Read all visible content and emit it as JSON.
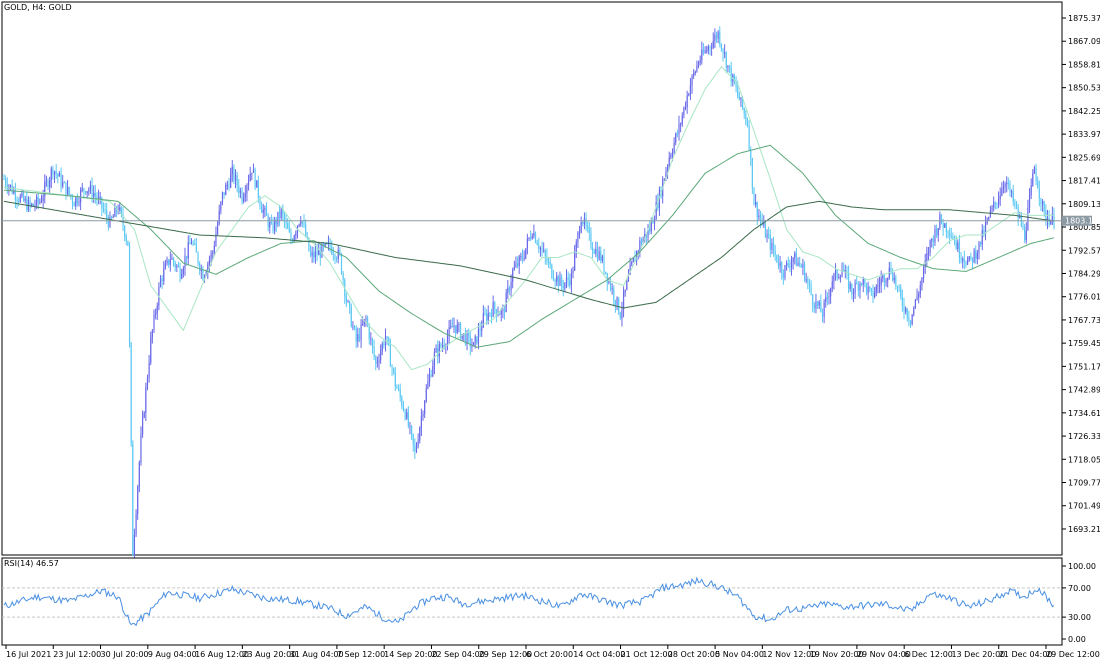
{
  "symbol_header": "GOLD, H4:  GOLD",
  "rsi_header": "RSI(14) 46.57",
  "current_price_label": "1803.10",
  "colors": {
    "bull": "#6868e8",
    "bear": "#5cc8f4",
    "ma_fast": "#a8e6c4",
    "ma_mid": "#5aa878",
    "ma_slow": "#3a6a4a",
    "rsi": "#4a90e2",
    "price_line": "#8c9aa4",
    "grid": "#c8c8c8"
  },
  "chart_data": [
    {
      "type": "candlestick",
      "title": "GOLD, H4:  GOLD",
      "ylim": [
        1685,
        1880
      ],
      "y_ticks": [
        "1875.37",
        "1867.09",
        "1858.81",
        "1850.53",
        "1842.25",
        "1833.97",
        "1825.69",
        "1817.41",
        "1809.13",
        "1800.85",
        "1792.57",
        "1784.29",
        "1776.01",
        "1767.73",
        "1759.45",
        "1751.17",
        "1742.89",
        "1734.61",
        "1726.33",
        "1718.05",
        "1709.77",
        "1701.49",
        "1693.21"
      ],
      "x_ticks": [
        "16 Jul 2021",
        "23 Jul 12:00",
        "30 Jul 20:00",
        "9 Aug 04:00",
        "16 Aug 12:00",
        "23 Aug 20:00",
        "31 Aug 04:00",
        "7 Sep 12:00",
        "14 Sep 20:00",
        "22 Sep 04:00",
        "29 Sep 12:00",
        "6 Oct 20:00",
        "14 Oct 04:00",
        "21 Oct 12:00",
        "28 Oct 20:00",
        "5 Nov 04:00",
        "12 Nov 12:00",
        "19 Nov 20:00",
        "29 Nov 04:00",
        "6 Dec 12:00",
        "13 Dec 20:00",
        "21 Dec 04:00",
        "29 Dec 12:00"
      ],
      "current_price": 1803.1,
      "path": [
        [
          0,
          1818
        ],
        [
          8,
          1812
        ],
        [
          16,
          1808
        ],
        [
          22,
          1810
        ],
        [
          30,
          1822
        ],
        [
          36,
          1816
        ],
        [
          43,
          1810
        ],
        [
          50,
          1815
        ],
        [
          55,
          1813
        ],
        [
          60,
          1808
        ],
        [
          65,
          1802
        ],
        [
          70,
          1808
        ],
        [
          76,
          1795
        ],
        [
          79,
          1685
        ],
        [
          84,
          1725
        ],
        [
          90,
          1760
        ],
        [
          96,
          1782
        ],
        [
          102,
          1790
        ],
        [
          108,
          1785
        ],
        [
          115,
          1796
        ],
        [
          122,
          1784
        ],
        [
          128,
          1792
        ],
        [
          134,
          1812
        ],
        [
          140,
          1820
        ],
        [
          146,
          1812
        ],
        [
          152,
          1822
        ],
        [
          158,
          1808
        ],
        [
          164,
          1800
        ],
        [
          170,
          1806
        ],
        [
          176,
          1796
        ],
        [
          182,
          1805
        ],
        [
          188,
          1790
        ],
        [
          194,
          1792
        ],
        [
          200,
          1794
        ],
        [
          206,
          1790
        ],
        [
          210,
          1775
        ],
        [
          216,
          1760
        ],
        [
          222,
          1768
        ],
        [
          228,
          1752
        ],
        [
          234,
          1762
        ],
        [
          240,
          1745
        ],
        [
          246,
          1735
        ],
        [
          252,
          1720
        ],
        [
          258,
          1740
        ],
        [
          264,
          1755
        ],
        [
          270,
          1760
        ],
        [
          276,
          1766
        ],
        [
          282,
          1762
        ],
        [
          288,
          1758
        ],
        [
          294,
          1768
        ],
        [
          300,
          1772
        ],
        [
          306,
          1770
        ],
        [
          312,
          1785
        ],
        [
          318,
          1790
        ],
        [
          324,
          1800
        ],
        [
          330,
          1792
        ],
        [
          336,
          1785
        ],
        [
          342,
          1780
        ],
        [
          348,
          1783
        ],
        [
          354,
          1805
        ],
        [
          360,
          1795
        ],
        [
          366,
          1790
        ],
        [
          372,
          1780
        ],
        [
          378,
          1770
        ],
        [
          384,
          1785
        ],
        [
          390,
          1795
        ],
        [
          396,
          1800
        ],
        [
          402,
          1812
        ],
        [
          408,
          1826
        ],
        [
          414,
          1836
        ],
        [
          420,
          1850
        ],
        [
          426,
          1860
        ],
        [
          432,
          1865
        ],
        [
          438,
          1870
        ],
        [
          444,
          1858
        ],
        [
          450,
          1848
        ],
        [
          456,
          1838
        ],
        [
          460,
          1810
        ],
        [
          466,
          1800
        ],
        [
          472,
          1792
        ],
        [
          478,
          1785
        ],
        [
          484,
          1790
        ],
        [
          490,
          1786
        ],
        [
          496,
          1775
        ],
        [
          502,
          1770
        ],
        [
          508,
          1782
        ],
        [
          514,
          1786
        ],
        [
          520,
          1778
        ],
        [
          526,
          1782
        ],
        [
          532,
          1776
        ],
        [
          538,
          1782
        ],
        [
          544,
          1786
        ],
        [
          550,
          1775
        ],
        [
          556,
          1768
        ],
        [
          562,
          1780
        ],
        [
          568,
          1795
        ],
        [
          574,
          1803
        ],
        [
          580,
          1800
        ],
        [
          586,
          1792
        ],
        [
          592,
          1788
        ],
        [
          598,
          1794
        ],
        [
          604,
          1804
        ],
        [
          610,
          1812
        ],
        [
          614,
          1818
        ],
        [
          620,
          1808
        ],
        [
          626,
          1798
        ],
        [
          632,
          1822
        ],
        [
          638,
          1805
        ],
        [
          644,
          1803
        ]
      ],
      "ma_fast": [
        [
          0,
          1815
        ],
        [
          40,
          1812
        ],
        [
          65,
          1810
        ],
        [
          80,
          1800
        ],
        [
          90,
          1780
        ],
        [
          100,
          1772
        ],
        [
          110,
          1764
        ],
        [
          120,
          1778
        ],
        [
          130,
          1792
        ],
        [
          140,
          1800
        ],
        [
          150,
          1808
        ],
        [
          160,
          1812
        ],
        [
          170,
          1808
        ],
        [
          180,
          1800
        ],
        [
          190,
          1795
        ],
        [
          200,
          1788
        ],
        [
          210,
          1778
        ],
        [
          220,
          1768
        ],
        [
          230,
          1762
        ],
        [
          240,
          1758
        ],
        [
          250,
          1750
        ],
        [
          260,
          1752
        ],
        [
          270,
          1758
        ],
        [
          280,
          1762
        ],
        [
          290,
          1765
        ],
        [
          300,
          1768
        ],
        [
          310,
          1775
        ],
        [
          320,
          1782
        ],
        [
          330,
          1790
        ],
        [
          340,
          1790
        ],
        [
          350,
          1792
        ],
        [
          360,
          1790
        ],
        [
          370,
          1782
        ],
        [
          380,
          1780
        ],
        [
          390,
          1792
        ],
        [
          400,
          1808
        ],
        [
          410,
          1825
        ],
        [
          420,
          1838
        ],
        [
          430,
          1850
        ],
        [
          440,
          1858
        ],
        [
          450,
          1852
        ],
        [
          460,
          1835
        ],
        [
          470,
          1818
        ],
        [
          480,
          1800
        ],
        [
          490,
          1792
        ],
        [
          500,
          1790
        ],
        [
          510,
          1786
        ],
        [
          520,
          1784
        ],
        [
          530,
          1782
        ],
        [
          540,
          1784
        ],
        [
          550,
          1786
        ],
        [
          560,
          1786
        ],
        [
          570,
          1790
        ],
        [
          580,
          1796
        ],
        [
          590,
          1798
        ],
        [
          600,
          1798
        ],
        [
          610,
          1802
        ],
        [
          620,
          1806
        ],
        [
          630,
          1805
        ],
        [
          644,
          1805
        ]
      ],
      "ma_mid": [
        [
          0,
          1814
        ],
        [
          40,
          1812
        ],
        [
          70,
          1810
        ],
        [
          90,
          1800
        ],
        [
          110,
          1788
        ],
        [
          130,
          1784
        ],
        [
          150,
          1790
        ],
        [
          170,
          1795
        ],
        [
          190,
          1796
        ],
        [
          210,
          1790
        ],
        [
          230,
          1778
        ],
        [
          250,
          1770
        ],
        [
          270,
          1763
        ],
        [
          290,
          1758
        ],
        [
          310,
          1760
        ],
        [
          330,
          1768
        ],
        [
          350,
          1775
        ],
        [
          370,
          1782
        ],
        [
          390,
          1792
        ],
        [
          410,
          1805
        ],
        [
          430,
          1820
        ],
        [
          450,
          1827
        ],
        [
          470,
          1830
        ],
        [
          490,
          1820
        ],
        [
          510,
          1805
        ],
        [
          530,
          1795
        ],
        [
          550,
          1790
        ],
        [
          570,
          1786
        ],
        [
          590,
          1785
        ],
        [
          610,
          1790
        ],
        [
          630,
          1795
        ],
        [
          644,
          1797
        ]
      ],
      "ma_slow": [
        [
          0,
          1810
        ],
        [
          40,
          1806
        ],
        [
          80,
          1802
        ],
        [
          120,
          1798
        ],
        [
          160,
          1797
        ],
        [
          200,
          1795
        ],
        [
          240,
          1790
        ],
        [
          280,
          1787
        ],
        [
          320,
          1782
        ],
        [
          360,
          1775
        ],
        [
          380,
          1772
        ],
        [
          400,
          1774
        ],
        [
          420,
          1782
        ],
        [
          440,
          1790
        ],
        [
          460,
          1800
        ],
        [
          480,
          1808
        ],
        [
          500,
          1810
        ],
        [
          520,
          1808
        ],
        [
          540,
          1807
        ],
        [
          560,
          1807
        ],
        [
          580,
          1807
        ],
        [
          600,
          1806
        ],
        [
          620,
          1805
        ],
        [
          644,
          1803
        ]
      ]
    },
    {
      "type": "line",
      "title": "RSI(14) 46.57",
      "ylim": [
        0,
        100
      ],
      "y_ticks": [
        "100.00",
        "70.00",
        "30.00",
        "0.00"
      ],
      "levels": [
        70,
        30
      ],
      "rsi_points": [
        [
          0,
          45
        ],
        [
          20,
          58
        ],
        [
          40,
          52
        ],
        [
          60,
          66
        ],
        [
          70,
          58
        ],
        [
          78,
          18
        ],
        [
          88,
          34
        ],
        [
          100,
          64
        ],
        [
          120,
          56
        ],
        [
          140,
          68
        ],
        [
          160,
          56
        ],
        [
          180,
          52
        ],
        [
          200,
          42
        ],
        [
          210,
          32
        ],
        [
          222,
          44
        ],
        [
          232,
          30
        ],
        [
          242,
          22
        ],
        [
          252,
          44
        ],
        [
          262,
          56
        ],
        [
          272,
          58
        ],
        [
          282,
          48
        ],
        [
          294,
          52
        ],
        [
          306,
          56
        ],
        [
          318,
          60
        ],
        [
          330,
          52
        ],
        [
          342,
          44
        ],
        [
          354,
          62
        ],
        [
          366,
          54
        ],
        [
          378,
          46
        ],
        [
          392,
          52
        ],
        [
          404,
          70
        ],
        [
          416,
          74
        ],
        [
          426,
          80
        ],
        [
          438,
          72
        ],
        [
          450,
          58
        ],
        [
          460,
          32
        ],
        [
          470,
          26
        ],
        [
          480,
          40
        ],
        [
          492,
          42
        ],
        [
          504,
          48
        ],
        [
          516,
          44
        ],
        [
          528,
          46
        ],
        [
          540,
          48
        ],
        [
          556,
          38
        ],
        [
          568,
          62
        ],
        [
          580,
          56
        ],
        [
          592,
          44
        ],
        [
          606,
          54
        ],
        [
          616,
          66
        ],
        [
          626,
          58
        ],
        [
          634,
          70
        ],
        [
          644,
          46
        ]
      ]
    }
  ]
}
